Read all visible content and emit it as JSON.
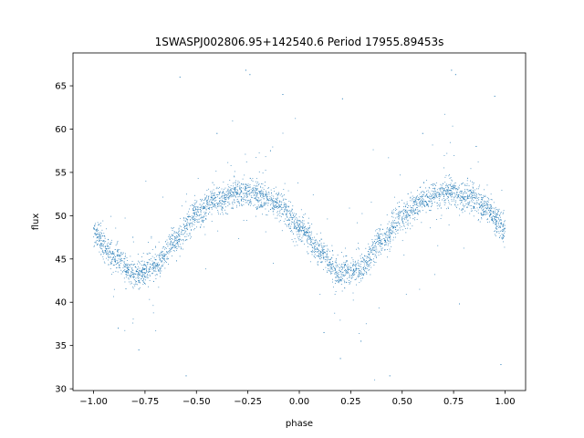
{
  "chart_data": {
    "type": "scatter",
    "title": "1SWASPJ002806.95+142540.6 Period 17955.89453s",
    "xlabel": "phase",
    "ylabel": "flux",
    "xlim": [
      -1.1,
      1.1
    ],
    "ylim": [
      29.8,
      68.8
    ],
    "x_ticks": [
      -1.0,
      -0.75,
      -0.5,
      -0.25,
      0.0,
      0.25,
      0.5,
      0.75,
      1.0
    ],
    "x_tick_labels": [
      "−1.00",
      "−0.75",
      "−0.50",
      "−0.25",
      "0.00",
      "0.25",
      "0.50",
      "0.75",
      "1.00"
    ],
    "y_ticks": [
      30,
      35,
      40,
      45,
      50,
      55,
      60,
      65
    ],
    "y_tick_labels": [
      "30",
      "35",
      "40",
      "45",
      "50",
      "55",
      "60",
      "65"
    ],
    "grid": false,
    "legend": "none",
    "marker_color": "#1f77b4",
    "series": [
      {
        "curve_summary": {
          "period_in_phase": 1.0,
          "mean_flux": 47.8,
          "amplitude": 4.9,
          "maximum_phases": [
            -0.25,
            0.75
          ],
          "minimum_phases": [
            -0.78,
            0.22
          ],
          "scatter": 0.8
        },
        "curve": [
          {
            "x": -1.0,
            "y": 48.0
          },
          {
            "x": -0.9,
            "y": 45.2
          },
          {
            "x": -0.8,
            "y": 43.1
          },
          {
            "x": -0.7,
            "y": 44.2
          },
          {
            "x": -0.6,
            "y": 47.3
          },
          {
            "x": -0.5,
            "y": 50.2
          },
          {
            "x": -0.4,
            "y": 51.8
          },
          {
            "x": -0.3,
            "y": 52.6
          },
          {
            "x": -0.25,
            "y": 52.7
          },
          {
            "x": -0.2,
            "y": 52.4
          },
          {
            "x": -0.1,
            "y": 51.2
          },
          {
            "x": 0.0,
            "y": 48.8
          },
          {
            "x": 0.1,
            "y": 45.8
          },
          {
            "x": 0.2,
            "y": 43.2
          },
          {
            "x": 0.3,
            "y": 44.0
          },
          {
            "x": 0.4,
            "y": 47.0
          },
          {
            "x": 0.5,
            "y": 50.0
          },
          {
            "x": 0.6,
            "y": 51.8
          },
          {
            "x": 0.7,
            "y": 52.6
          },
          {
            "x": 0.75,
            "y": 52.7
          },
          {
            "x": 0.8,
            "y": 52.4
          },
          {
            "x": 0.9,
            "y": 51.0
          },
          {
            "x": 1.0,
            "y": 48.4
          }
        ],
        "outliers": [
          {
            "x": -0.26,
            "y": 66.8
          },
          {
            "x": -0.24,
            "y": 66.3
          },
          {
            "x": 0.74,
            "y": 66.8
          },
          {
            "x": 0.76,
            "y": 66.3
          },
          {
            "x": -0.58,
            "y": 66.0
          },
          {
            "x": -0.08,
            "y": 64.0
          },
          {
            "x": 0.21,
            "y": 63.5
          },
          {
            "x": 0.95,
            "y": 63.8
          },
          {
            "x": -0.55,
            "y": 31.5
          },
          {
            "x": 0.44,
            "y": 31.5
          },
          {
            "x": -0.78,
            "y": 34.5
          },
          {
            "x": 0.2,
            "y": 33.5
          },
          {
            "x": -0.88,
            "y": 37.0
          },
          {
            "x": 0.12,
            "y": 36.5
          },
          {
            "x": -0.4,
            "y": 59.5
          },
          {
            "x": 0.6,
            "y": 59.5
          },
          {
            "x": 0.3,
            "y": 35.5
          },
          {
            "x": 0.98,
            "y": 32.8
          },
          {
            "x": 0.86,
            "y": 58.0
          },
          {
            "x": -0.14,
            "y": 57.5
          }
        ]
      }
    ]
  }
}
